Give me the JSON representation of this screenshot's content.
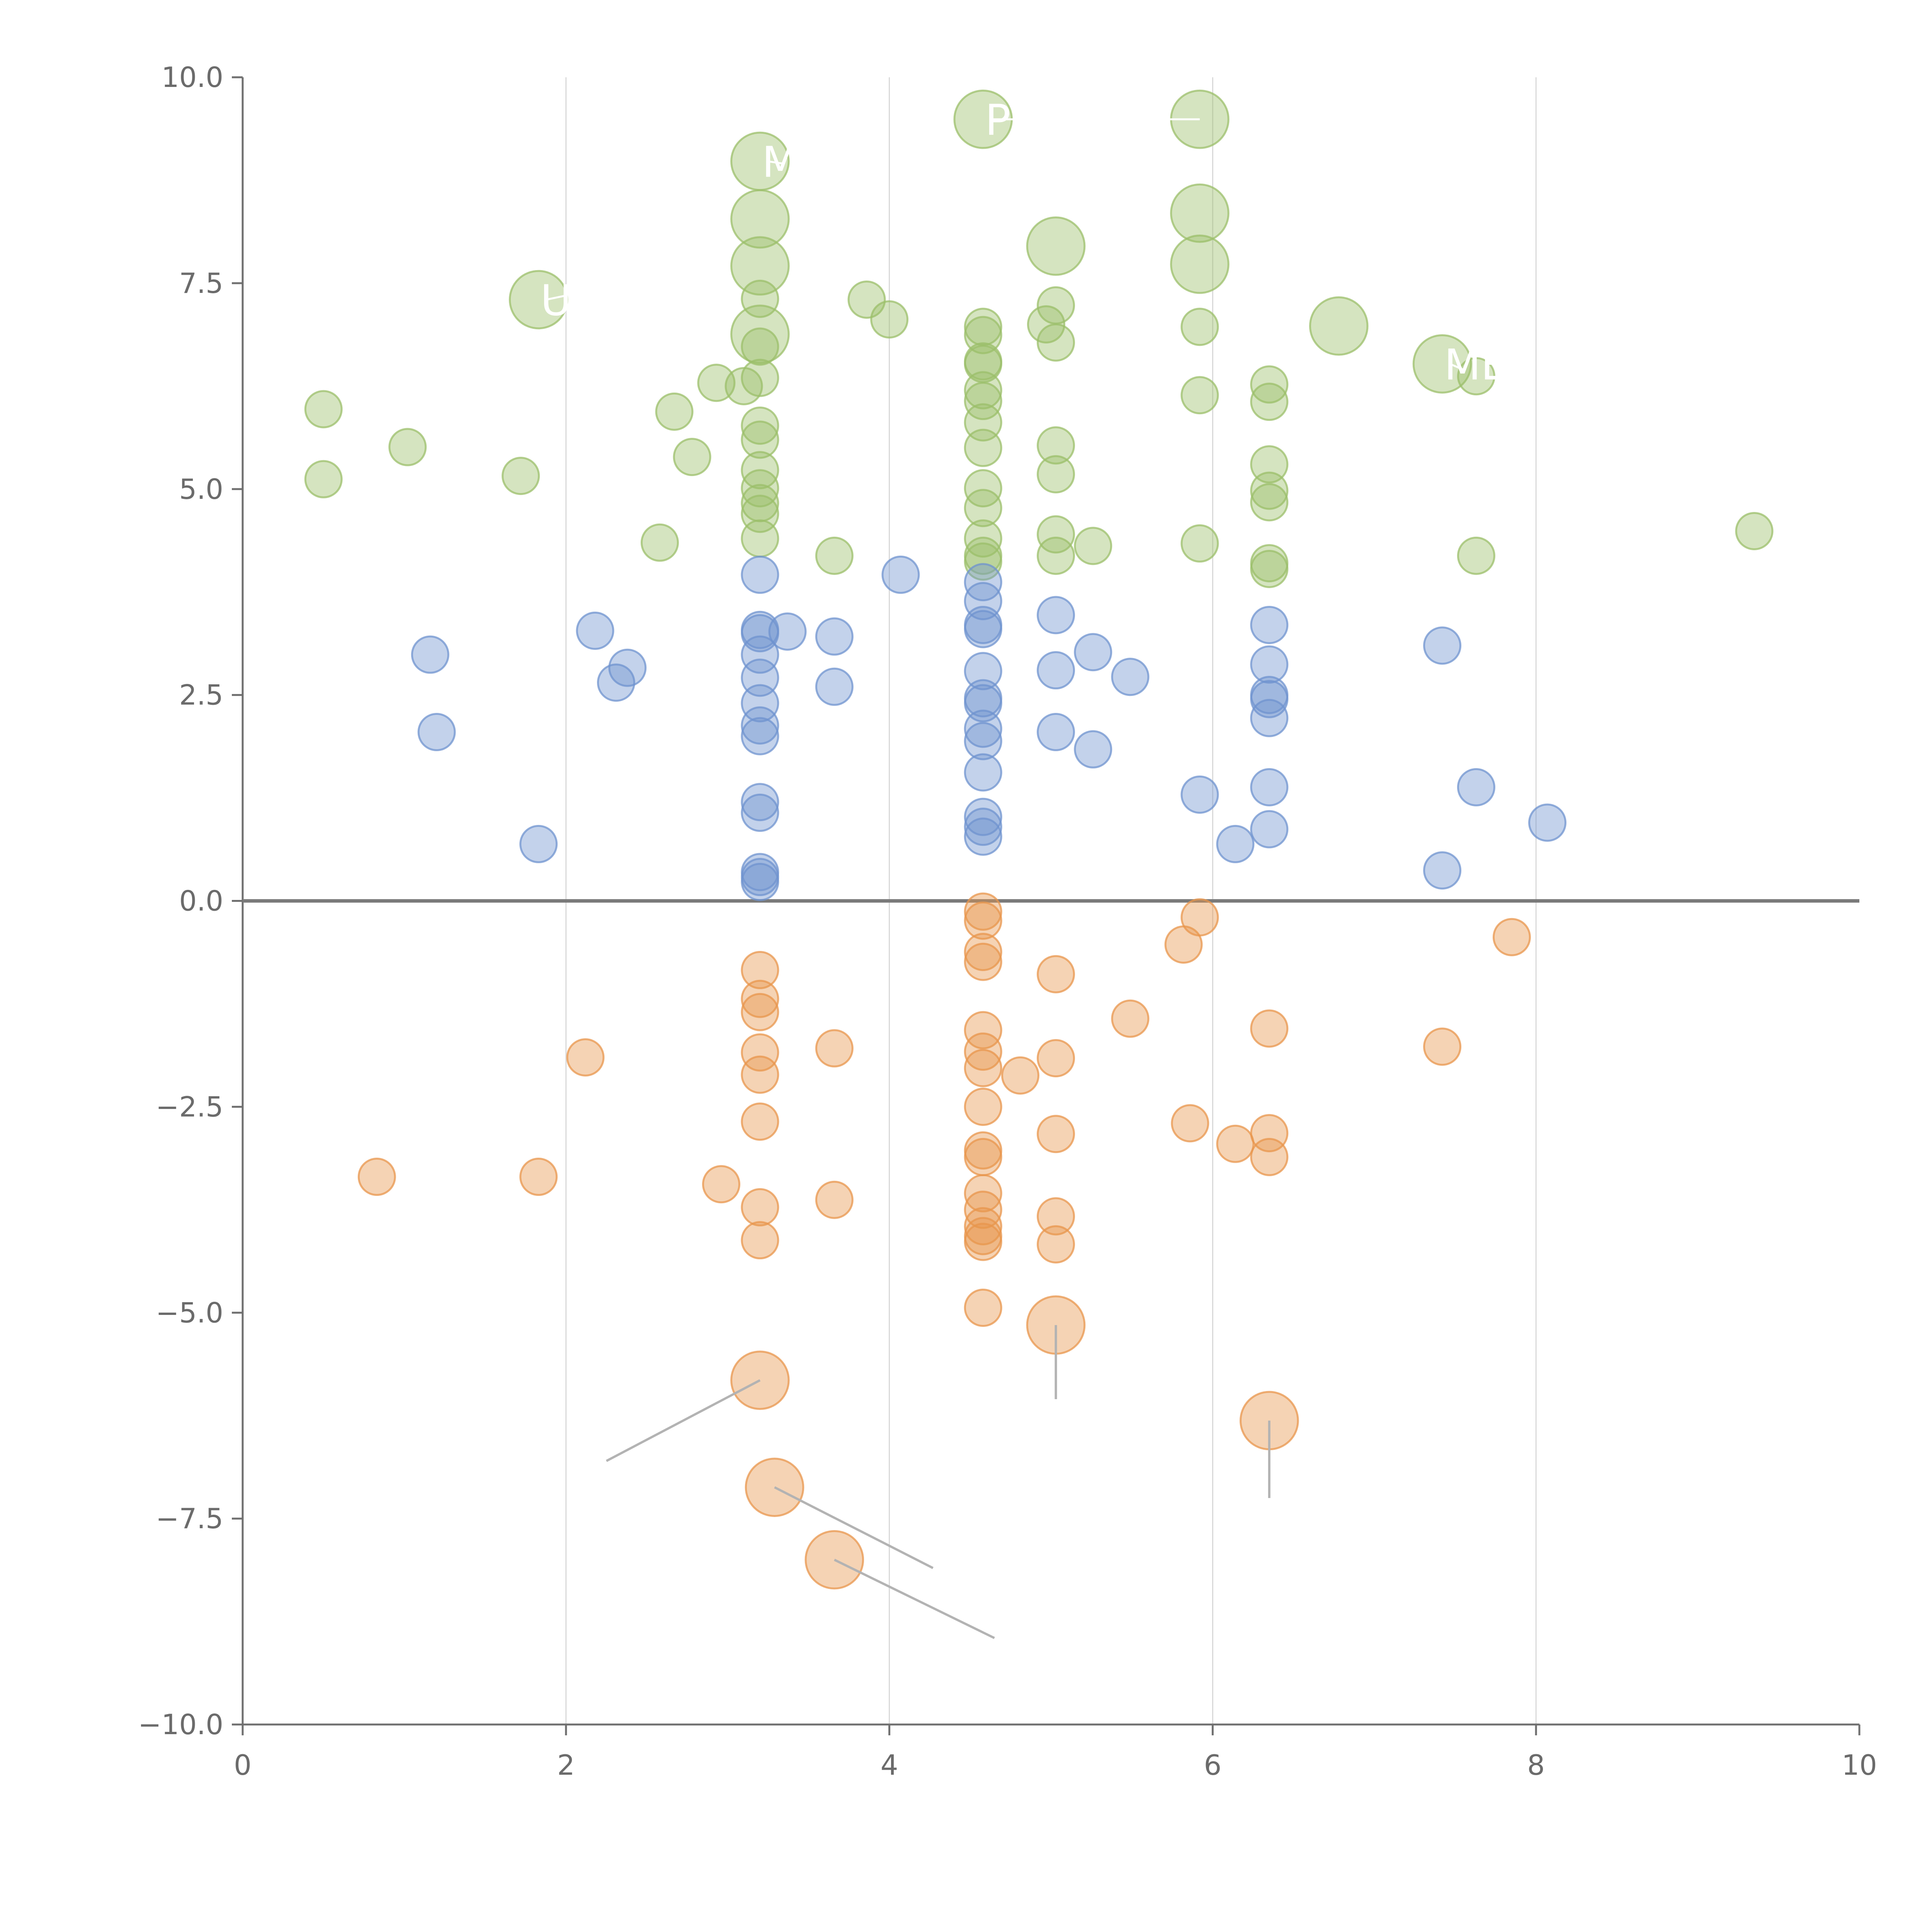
{
  "chart_data": {
    "type": "scatter",
    "title": "",
    "xlabel": "",
    "ylabel": "",
    "xlim": [
      0,
      10
    ],
    "ylim": [
      -10,
      10
    ],
    "x_ticks": [
      "0",
      "2",
      "4",
      "6",
      "8",
      "10"
    ],
    "x_tick_values": [
      0,
      2,
      4,
      6,
      8,
      10
    ],
    "y_ticks": [
      "10.0",
      "7.5",
      "5.0",
      "2.5",
      "0.0",
      "−2.5",
      "−5.0",
      "−7.5",
      "−10.0"
    ],
    "y_tick_values": [
      10,
      7.5,
      5,
      2.5,
      0,
      -2.5,
      -5,
      -7.5,
      -10
    ],
    "grid": "vertical lines at x ticks",
    "zero_line": true,
    "colors": {
      "green": "#9bbf6a",
      "blue": "#6f93cf",
      "orange": "#e8964c",
      "axis": "#707070",
      "grid": "#d9d9d9",
      "zero_line": "#7a7a7a",
      "leader_line": "#b3b3b3",
      "label_text": "#ffffff"
    },
    "series": [
      {
        "color": "green",
        "points": [
          [
            0.5,
            5.97,
            1
          ],
          [
            0.5,
            5.12,
            1
          ],
          [
            1.02,
            5.51,
            1
          ],
          [
            1.72,
            5.16,
            1
          ],
          [
            1.83,
            7.3,
            2.5
          ],
          [
            2.58,
            4.35,
            1
          ],
          [
            2.67,
            5.94,
            1
          ],
          [
            2.78,
            5.39,
            1
          ],
          [
            2.93,
            6.29,
            1
          ],
          [
            3.1,
            6.25,
            1
          ],
          [
            3.2,
            8.98,
            2.5
          ],
          [
            3.2,
            8.28,
            2.5
          ],
          [
            3.2,
            7.71,
            2.5
          ],
          [
            3.2,
            7.31,
            1
          ],
          [
            3.2,
            6.88,
            2.5
          ],
          [
            3.2,
            6.73,
            1
          ],
          [
            3.2,
            6.35,
            1
          ],
          [
            3.2,
            5.77,
            1
          ],
          [
            3.2,
            5.6,
            1
          ],
          [
            3.2,
            5.23,
            1
          ],
          [
            3.2,
            5.01,
            1
          ],
          [
            3.2,
            4.83,
            1
          ],
          [
            3.2,
            4.7,
            1
          ],
          [
            3.2,
            4.4,
            1
          ],
          [
            3.66,
            4.19,
            1
          ],
          [
            3.86,
            7.3,
            1
          ],
          [
            4.0,
            7.06,
            1
          ],
          [
            4.58,
            9.49,
            2.5
          ],
          [
            4.58,
            6.97,
            1
          ],
          [
            4.58,
            6.87,
            1
          ],
          [
            4.58,
            6.55,
            1
          ],
          [
            4.58,
            6.52,
            1
          ],
          [
            4.58,
            6.2,
            1
          ],
          [
            4.58,
            6.07,
            1
          ],
          [
            4.58,
            5.81,
            1
          ],
          [
            4.58,
            5.5,
            1
          ],
          [
            4.58,
            5.01,
            1
          ],
          [
            4.58,
            4.77,
            1
          ],
          [
            4.58,
            4.4,
            1
          ],
          [
            4.58,
            4.19,
            1
          ],
          [
            4.58,
            4.12,
            1
          ],
          [
            4.97,
            7.0,
            1
          ],
          [
            5.03,
            7.95,
            2.5
          ],
          [
            5.03,
            7.23,
            1
          ],
          [
            5.03,
            6.78,
            1
          ],
          [
            5.03,
            5.53,
            1
          ],
          [
            5.03,
            5.18,
            1
          ],
          [
            5.03,
            4.45,
            1
          ],
          [
            5.03,
            4.19,
            1
          ],
          [
            5.26,
            4.31,
            1
          ],
          [
            5.92,
            9.49,
            2.5
          ],
          [
            5.92,
            8.35,
            2.5
          ],
          [
            5.92,
            7.73,
            2.5
          ],
          [
            5.92,
            6.97,
            1
          ],
          [
            5.92,
            6.14,
            1
          ],
          [
            5.92,
            4.34,
            1
          ],
          [
            6.35,
            6.27,
            1
          ],
          [
            6.35,
            6.06,
            1
          ],
          [
            6.35,
            5.3,
            1
          ],
          [
            6.35,
            4.98,
            1
          ],
          [
            6.35,
            4.84,
            1
          ],
          [
            6.35,
            4.1,
            1
          ],
          [
            6.35,
            4.03,
            1
          ],
          [
            6.78,
            6.98,
            2.5
          ],
          [
            7.42,
            6.52,
            2.5
          ],
          [
            7.63,
            6.37,
            1
          ],
          [
            7.63,
            4.19,
            1
          ],
          [
            9.35,
            4.49,
            1
          ]
        ]
      },
      {
        "color": "blue",
        "points": [
          [
            1.16,
            2.99,
            1
          ],
          [
            1.2,
            2.05,
            1
          ],
          [
            1.83,
            0.69,
            1
          ],
          [
            2.18,
            3.28,
            1
          ],
          [
            2.31,
            2.65,
            1
          ],
          [
            2.38,
            2.83,
            1
          ],
          [
            3.2,
            3.96,
            1
          ],
          [
            3.2,
            3.29,
            1
          ],
          [
            3.2,
            3.25,
            1
          ],
          [
            3.2,
            2.99,
            1
          ],
          [
            3.2,
            2.71,
            1
          ],
          [
            3.2,
            2.4,
            1
          ],
          [
            3.2,
            2.13,
            1
          ],
          [
            3.2,
            2.0,
            1
          ],
          [
            3.2,
            1.2,
            1
          ],
          [
            3.2,
            1.07,
            1
          ],
          [
            3.2,
            0.35,
            1
          ],
          [
            3.2,
            0.29,
            1
          ],
          [
            3.2,
            0.23,
            1
          ],
          [
            3.37,
            3.27,
            1
          ],
          [
            3.66,
            3.21,
            1
          ],
          [
            3.66,
            2.6,
            1
          ],
          [
            4.07,
            3.96,
            1
          ],
          [
            4.58,
            3.87,
            1
          ],
          [
            4.58,
            3.64,
            1
          ],
          [
            4.58,
            3.35,
            1
          ],
          [
            4.58,
            3.3,
            1
          ],
          [
            4.58,
            2.79,
            1
          ],
          [
            4.58,
            2.46,
            1
          ],
          [
            4.58,
            2.4,
            1
          ],
          [
            4.58,
            2.09,
            1
          ],
          [
            4.58,
            1.94,
            1
          ],
          [
            4.58,
            1.56,
            1
          ],
          [
            4.58,
            1.02,
            1
          ],
          [
            4.58,
            0.9,
            1
          ],
          [
            4.58,
            0.78,
            1
          ],
          [
            5.03,
            3.47,
            1
          ],
          [
            5.03,
            2.8,
            1
          ],
          [
            5.03,
            2.05,
            1
          ],
          [
            5.26,
            3.02,
            1
          ],
          [
            5.26,
            1.84,
            1
          ],
          [
            5.49,
            2.72,
            1
          ],
          [
            5.92,
            1.29,
            1
          ],
          [
            6.14,
            0.69,
            1
          ],
          [
            6.35,
            3.35,
            1
          ],
          [
            6.35,
            2.87,
            1
          ],
          [
            6.35,
            2.5,
            1
          ],
          [
            6.35,
            2.45,
            1
          ],
          [
            6.35,
            2.22,
            1
          ],
          [
            6.35,
            1.38,
            1
          ],
          [
            6.35,
            0.87,
            1
          ],
          [
            7.42,
            3.1,
            1
          ],
          [
            7.42,
            0.37,
            1
          ],
          [
            7.63,
            1.38,
            1
          ],
          [
            8.07,
            0.95,
            1
          ]
        ]
      },
      {
        "color": "orange",
        "points": [
          [
            0.83,
            -3.35,
            1
          ],
          [
            1.83,
            -3.35,
            1
          ],
          [
            2.12,
            -1.9,
            1
          ],
          [
            2.96,
            -3.44,
            1
          ],
          [
            3.2,
            -0.84,
            1
          ],
          [
            3.2,
            -1.19,
            1
          ],
          [
            3.2,
            -1.35,
            1
          ],
          [
            3.2,
            -1.84,
            1
          ],
          [
            3.2,
            -2.11,
            1
          ],
          [
            3.2,
            -2.68,
            1
          ],
          [
            3.2,
            -3.72,
            1
          ],
          [
            3.2,
            -4.12,
            1
          ],
          [
            3.2,
            -5.82,
            2.5
          ],
          [
            3.29,
            -7.12,
            2.5
          ],
          [
            3.66,
            -1.79,
            1
          ],
          [
            3.66,
            -3.63,
            1
          ],
          [
            3.66,
            -8.0,
            2.5
          ],
          [
            4.58,
            -0.13,
            1
          ],
          [
            4.58,
            -0.24,
            1
          ],
          [
            4.58,
            -0.62,
            1
          ],
          [
            4.58,
            -0.74,
            1
          ],
          [
            4.58,
            -1.57,
            1
          ],
          [
            4.58,
            -1.83,
            1
          ],
          [
            4.58,
            -2.03,
            1
          ],
          [
            4.58,
            -2.5,
            1
          ],
          [
            4.58,
            -3.03,
            1
          ],
          [
            4.58,
            -3.11,
            1
          ],
          [
            4.58,
            -3.55,
            1
          ],
          [
            4.58,
            -3.75,
            1
          ],
          [
            4.58,
            -3.95,
            1
          ],
          [
            4.58,
            -4.07,
            1
          ],
          [
            4.58,
            -4.14,
            1
          ],
          [
            4.58,
            -4.94,
            1
          ],
          [
            4.81,
            -2.12,
            1
          ],
          [
            5.03,
            -0.89,
            1
          ],
          [
            5.03,
            -1.91,
            1
          ],
          [
            5.03,
            -2.83,
            1
          ],
          [
            5.03,
            -3.83,
            1
          ],
          [
            5.03,
            -4.17,
            1
          ],
          [
            5.03,
            -5.15,
            2.5
          ],
          [
            5.49,
            -1.43,
            1
          ],
          [
            5.82,
            -0.53,
            1
          ],
          [
            5.86,
            -2.7,
            1
          ],
          [
            5.92,
            -0.2,
            1
          ],
          [
            6.14,
            -2.95,
            1
          ],
          [
            6.35,
            -1.55,
            1
          ],
          [
            6.35,
            -2.82,
            1
          ],
          [
            6.35,
            -3.11,
            1
          ],
          [
            6.35,
            -6.31,
            2.5
          ],
          [
            7.42,
            -1.77,
            1
          ],
          [
            7.85,
            -0.44,
            1
          ]
        ]
      }
    ],
    "annotations": [
      {
        "text": "P",
        "x": 4.58,
        "y": 9.49,
        "lx": 5.92,
        "ly": 9.49
      },
      {
        "text": "M",
        "x": 3.2,
        "y": 8.98,
        "lx": 3.35,
        "ly": 8.95
      },
      {
        "text": "U",
        "x": 1.83,
        "y": 7.3,
        "lx": 2.0,
        "ly": 7.35
      },
      {
        "text": "ME",
        "x": 7.42,
        "y": 6.52,
        "lx": 7.55,
        "ly": 6.45
      }
    ],
    "leader_lines": [
      [
        3.2,
        -5.82,
        2.25,
        -6.8
      ],
      [
        3.29,
        -7.12,
        4.27,
        -8.1
      ],
      [
        3.66,
        -8.0,
        4.65,
        -8.95
      ],
      [
        5.03,
        -5.15,
        5.03,
        -6.05
      ],
      [
        6.35,
        -6.31,
        6.35,
        -7.25
      ]
    ]
  }
}
